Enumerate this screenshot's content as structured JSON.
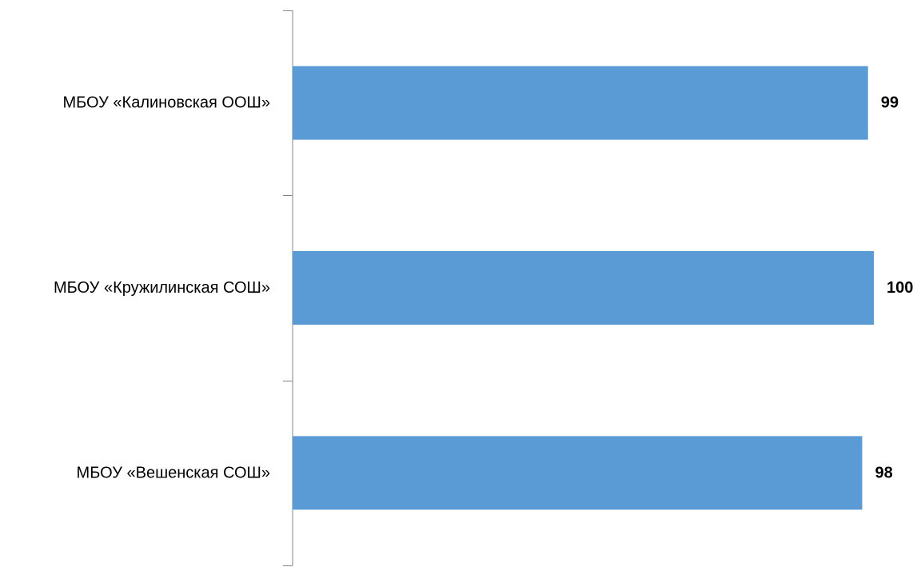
{
  "colors": {
    "bar": "#5B9BD5",
    "axis": "#868686",
    "text": "#000000"
  },
  "chart_data": {
    "type": "bar",
    "orientation": "horizontal",
    "categories": [
      "МБОУ «Калиновская ООШ»",
      "МБОУ «Кружилинская СОШ»",
      "МБОУ «Вешенская СОШ»"
    ],
    "values": [
      99,
      100,
      98
    ],
    "data_labels": [
      "99",
      "100",
      "98"
    ],
    "title": "",
    "xlabel": "",
    "ylabel": "",
    "grid": false,
    "legend": "none",
    "value_axis_visible": false
  }
}
